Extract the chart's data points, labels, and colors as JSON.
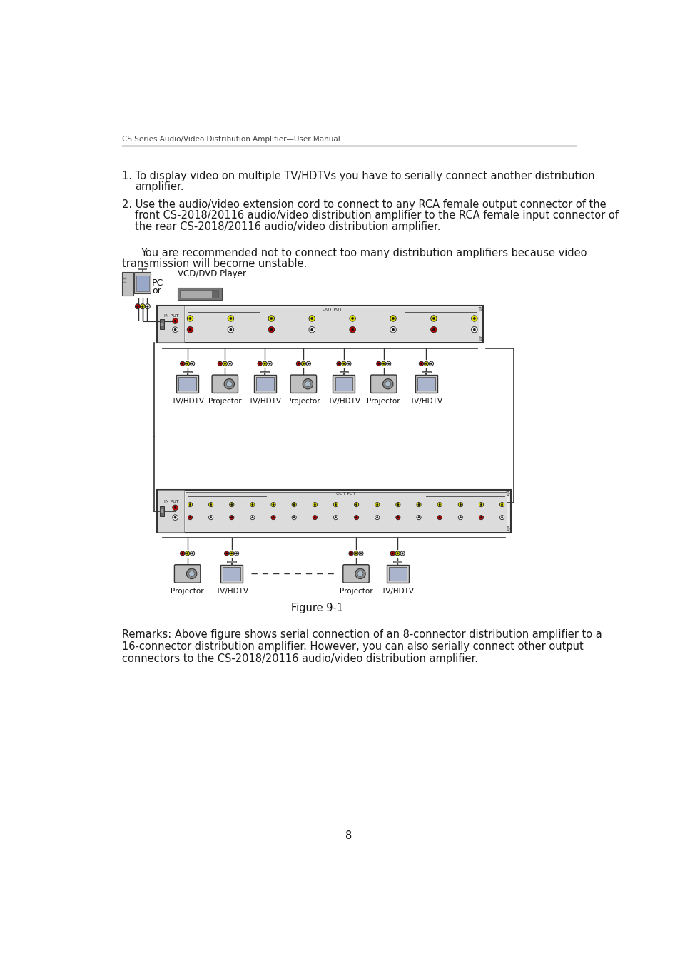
{
  "header_text": "CS Series Audio/Video Distribution Amplifier—User Manual",
  "page_number": "8",
  "figure_caption": "Figure 9-1",
  "remarks_text": "Remarks: Above figure shows serial connection of an 8-connector distribution amplifier to a 16-connector distribution amplifier. However, you can also serially connect other output connectors to the CS-2018/20116 audio/video distribution amplifier.",
  "bg_color": "#ffffff",
  "text_color": "#1a1a1a",
  "header_color": "#444444",
  "font_size_header": 7.5,
  "font_size_body": 10.5,
  "font_size_small": 7.0
}
